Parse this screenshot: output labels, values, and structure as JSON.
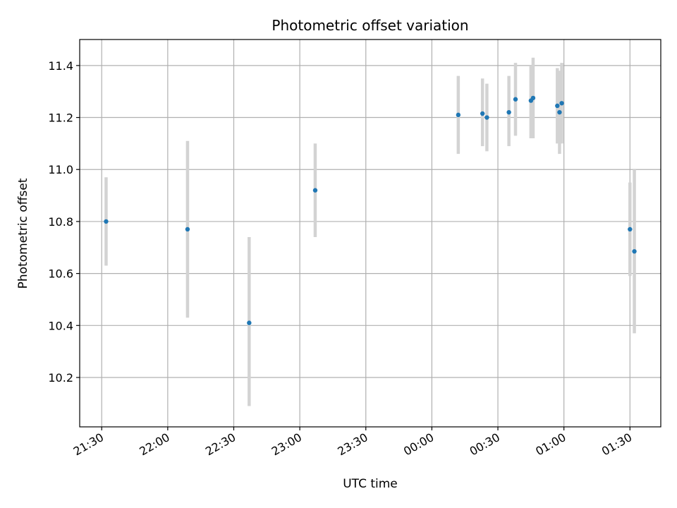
{
  "chart_data": {
    "type": "scatter",
    "title": "Photometric offset variation",
    "xlabel": "UTC time",
    "ylabel": "Photometric offset",
    "xlim": [
      "21:20",
      "01:44"
    ],
    "ylim": [
      10.01,
      11.5
    ],
    "xticks": [
      "21:30",
      "22:00",
      "22:30",
      "23:00",
      "23:30",
      "00:00",
      "00:30",
      "01:00",
      "01:30"
    ],
    "yticks": [
      10.2,
      10.4,
      10.6,
      10.8,
      11.0,
      11.2,
      11.4
    ],
    "grid": true,
    "colors": {
      "marker": "#1f77b4",
      "errorbar": "#d3d3d3",
      "grid": "#b0b0b0"
    },
    "points": [
      {
        "x": "21:32",
        "y": 10.8,
        "ylow": 10.63,
        "yhigh": 10.97
      },
      {
        "x": "22:09",
        "y": 10.77,
        "ylow": 10.43,
        "yhigh": 11.11
      },
      {
        "x": "22:37",
        "y": 10.41,
        "ylow": 10.09,
        "yhigh": 10.74
      },
      {
        "x": "23:07",
        "y": 10.92,
        "ylow": 10.74,
        "yhigh": 11.1
      },
      {
        "x": "00:12",
        "y": 11.21,
        "ylow": 11.06,
        "yhigh": 11.36
      },
      {
        "x": "00:23",
        "y": 11.215,
        "ylow": 11.09,
        "yhigh": 11.35
      },
      {
        "x": "00:25",
        "y": 11.2,
        "ylow": 11.07,
        "yhigh": 11.33
      },
      {
        "x": "00:35",
        "y": 11.22,
        "ylow": 11.09,
        "yhigh": 11.36
      },
      {
        "x": "00:38",
        "y": 11.27,
        "ylow": 11.13,
        "yhigh": 11.41
      },
      {
        "x": "00:45",
        "y": 11.265,
        "ylow": 11.12,
        "yhigh": 11.4
      },
      {
        "x": "00:46",
        "y": 11.275,
        "ylow": 11.12,
        "yhigh": 11.43
      },
      {
        "x": "00:57",
        "y": 11.245,
        "ylow": 11.1,
        "yhigh": 11.39
      },
      {
        "x": "00:58",
        "y": 11.22,
        "ylow": 11.06,
        "yhigh": 11.38
      },
      {
        "x": "00:59",
        "y": 11.255,
        "ylow": 11.1,
        "yhigh": 11.41
      },
      {
        "x": "01:30",
        "y": 10.77,
        "ylow": 10.59,
        "yhigh": 10.95
      },
      {
        "x": "01:32",
        "y": 10.685,
        "ylow": 10.37,
        "yhigh": 11.0
      }
    ]
  }
}
